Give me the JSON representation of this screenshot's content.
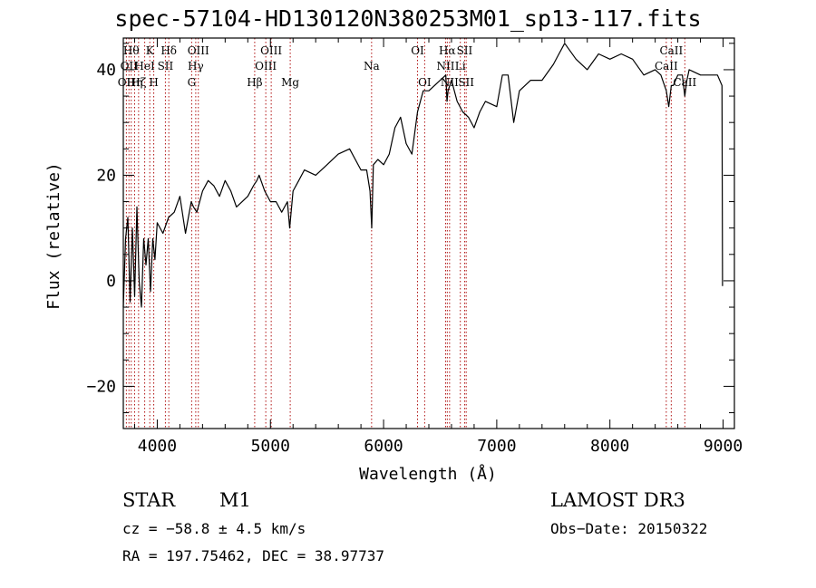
{
  "chart_data": {
    "type": "line",
    "title": "spec-57104-HD130120N380253M01_sp13-117.fits",
    "xlabel": "Wavelength (Å)",
    "ylabel": "Flux (relative)",
    "xlim": [
      3700,
      9100
    ],
    "ylim": [
      -28,
      46
    ],
    "xticks": [
      4000,
      5000,
      6000,
      7000,
      8000,
      9000
    ],
    "yticks": [
      -20,
      0,
      20,
      40
    ],
    "grid": false,
    "series": [
      {
        "color": "#000000",
        "x": [
          3700,
          3720,
          3740,
          3760,
          3780,
          3800,
          3820,
          3840,
          3860,
          3880,
          3900,
          3920,
          3940,
          3960,
          3980,
          4000,
          4050,
          4100,
          4150,
          4200,
          4250,
          4300,
          4320,
          4350,
          4400,
          4450,
          4500,
          4550,
          4600,
          4650,
          4700,
          4750,
          4800,
          4850,
          4880,
          4900,
          4950,
          5000,
          5050,
          5100,
          5150,
          5170,
          5200,
          5250,
          5300,
          5400,
          5500,
          5600,
          5700,
          5800,
          5850,
          5880,
          5895,
          5910,
          5950,
          6000,
          6050,
          6100,
          6150,
          6200,
          6250,
          6300,
          6350,
          6400,
          6450,
          6500,
          6550,
          6560,
          6570,
          6600,
          6650,
          6700,
          6750,
          6800,
          6850,
          6900,
          7000,
          7050,
          7100,
          7150,
          7200,
          7300,
          7400,
          7500,
          7550,
          7600,
          7700,
          7800,
          7900,
          8000,
          8100,
          8200,
          8300,
          8400,
          8450,
          8498,
          8520,
          8542,
          8560,
          8600,
          8640,
          8662,
          8680,
          8700,
          8800,
          8900,
          8950,
          8990,
          8995
        ],
        "y": [
          -5,
          8,
          12,
          -4,
          10,
          -3,
          14,
          0,
          -5,
          8,
          3,
          8,
          -2,
          8,
          4,
          11,
          9,
          12,
          13,
          16,
          9,
          15,
          14,
          13,
          17,
          19,
          18,
          16,
          19,
          17,
          14,
          15,
          16,
          18,
          19,
          20,
          17,
          15,
          15,
          13,
          15,
          10,
          17,
          19,
          21,
          20,
          22,
          24,
          25,
          21,
          21,
          17,
          10,
          22,
          23,
          22,
          24,
          29,
          31,
          26,
          24,
          32,
          36,
          36,
          37,
          38,
          39,
          34,
          36,
          38,
          34,
          32,
          31,
          29,
          32,
          34,
          33,
          39,
          39,
          30,
          36,
          38,
          38,
          41,
          43,
          45,
          42,
          40,
          43,
          42,
          43,
          42,
          39,
          40,
          39,
          36,
          33,
          37,
          37,
          39,
          39,
          35,
          38,
          40,
          39,
          39,
          39,
          37,
          -1
        ]
      }
    ],
    "lines": [
      {
        "wave": 3727,
        "label": "OII",
        "row": 3
      },
      {
        "wave": 3750,
        "label": "OII",
        "row": 2
      },
      {
        "wave": 3770,
        "label": "Hθ",
        "row": 1
      },
      {
        "wave": 3800,
        "label": "Hη",
        "row": 3
      },
      {
        "wave": 3835,
        "label": "Hζ",
        "row": 3
      },
      {
        "wave": 3889,
        "label": "HeI",
        "row": 2
      },
      {
        "wave": 3934,
        "label": "K",
        "row": 1
      },
      {
        "wave": 3969,
        "label": "H",
        "row": 3
      },
      {
        "wave": 4072,
        "label": "SII",
        "row": 2
      },
      {
        "wave": 4102,
        "label": "Hδ",
        "row": 1
      },
      {
        "wave": 4304,
        "label": "G",
        "row": 3
      },
      {
        "wave": 4340,
        "label": "Hγ",
        "row": 2
      },
      {
        "wave": 4363,
        "label": "OIII",
        "row": 1
      },
      {
        "wave": 4861,
        "label": "Hβ",
        "row": 3
      },
      {
        "wave": 4959,
        "label": "OIII",
        "row": 2
      },
      {
        "wave": 5007,
        "label": "OIII",
        "row": 1
      },
      {
        "wave": 5175,
        "label": "Mg",
        "row": 3
      },
      {
        "wave": 5894,
        "label": "Na",
        "row": 2
      },
      {
        "wave": 6300,
        "label": "OI",
        "row": 1
      },
      {
        "wave": 6363,
        "label": "OI",
        "row": 3
      },
      {
        "wave": 6548,
        "label": "NII",
        "row": 2
      },
      {
        "wave": 6563,
        "label": "Hα",
        "row": 1
      },
      {
        "wave": 6583,
        "label": "NII",
        "row": 3
      },
      {
        "wave": 6678,
        "label": "Li",
        "row": 2
      },
      {
        "wave": 6716,
        "label": "SII",
        "row": 1
      },
      {
        "wave": 6730,
        "label": "SII",
        "row": 3
      },
      {
        "wave": 8498,
        "label": "CaII",
        "row": 2
      },
      {
        "wave": 8542,
        "label": "CaII",
        "row": 1
      },
      {
        "wave": 8662,
        "label": "CaII",
        "row": 3
      }
    ]
  },
  "info": {
    "class_label": "STAR",
    "subclass": "M1",
    "survey": "LAMOST DR3",
    "cz": "cz = −58.8 ± 4.5 km/s",
    "obs_date": "Obs−Date: 20150322",
    "coords": "RA = 197.75462, DEC =  38.97737"
  }
}
